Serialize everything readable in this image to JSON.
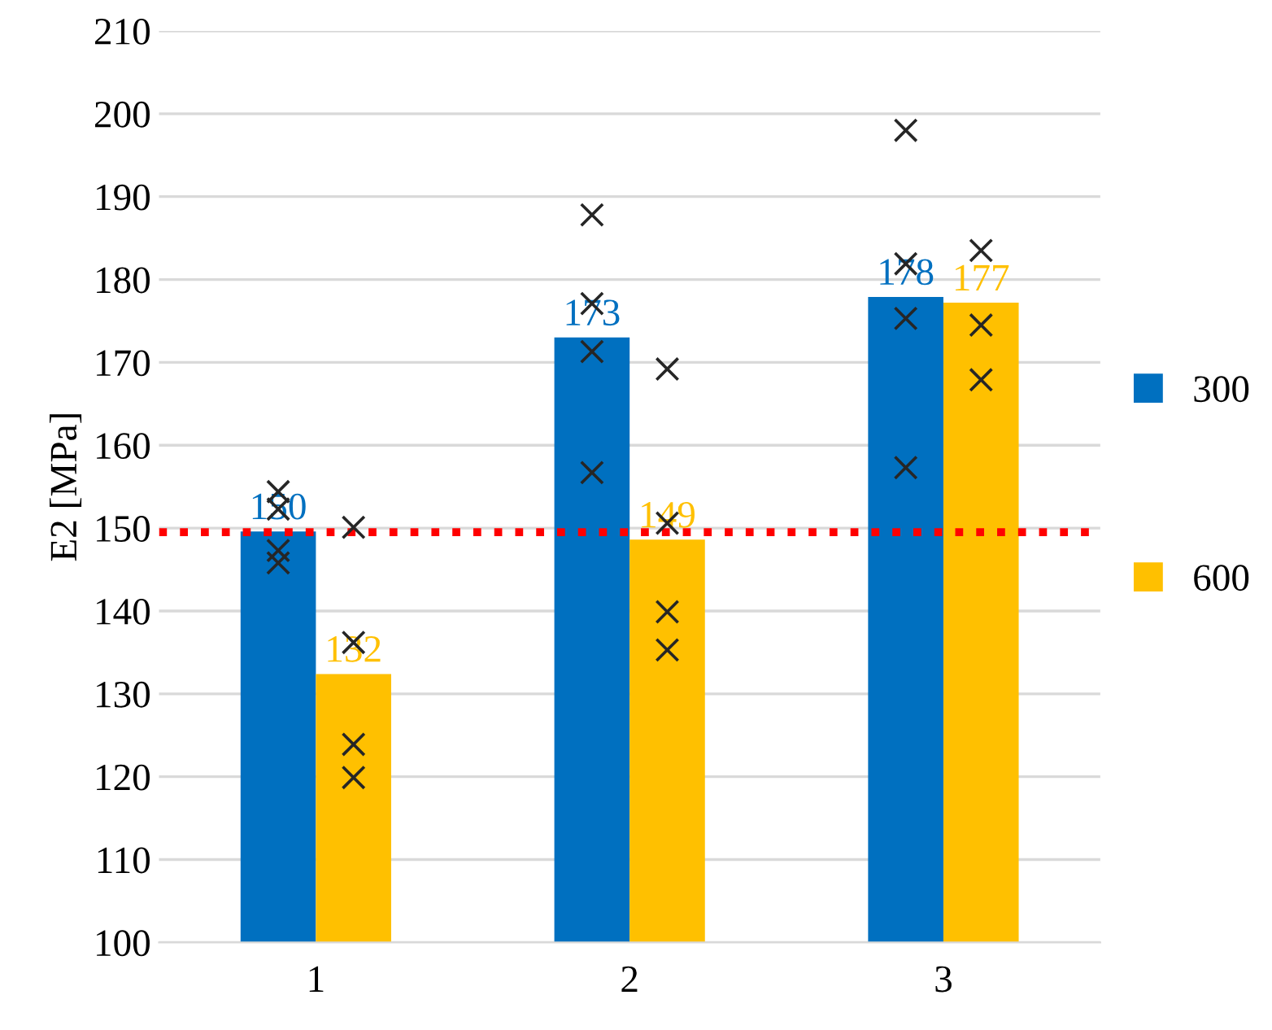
{
  "chart_data": {
    "type": "bar",
    "ylabel": "E2 [MPa]",
    "categories": [
      "1",
      "2",
      "3"
    ],
    "series": [
      {
        "name": "300",
        "color": "#0070c0",
        "values": [
          149.6,
          173,
          177.9
        ],
        "value_labels": [
          "150",
          "173",
          "178"
        ]
      },
      {
        "name": "600",
        "color": "#ffc000",
        "values": [
          132.4,
          148.6,
          177.2
        ],
        "value_labels": [
          "132",
          "149",
          "177"
        ]
      },
      {
        "type": "scatter",
        "color": "#262626",
        "marker": "cross",
        "x": [
          "1",
          "1",
          "1",
          "1",
          "2",
          "2",
          "2",
          "2",
          "3",
          "3",
          "3",
          "3"
        ],
        "values": [
          154.4,
          152.3,
          147.3,
          145.8,
          187.8,
          177.1,
          171.3,
          156.7,
          198.0,
          181.9,
          175.3,
          157.3
        ]
      },
      {
        "type": "scatter",
        "color": "#262626",
        "marker": "cross",
        "x": [
          "1",
          "1",
          "1",
          "1",
          "2",
          "2",
          "2",
          "2",
          "3",
          "3",
          "3"
        ],
        "values": [
          150.1,
          136.2,
          123.9,
          119.9,
          169.2,
          150.6,
          139.9,
          135.3,
          183.5,
          174.5,
          167.9
        ]
      }
    ],
    "ylim": [
      100,
      210
    ],
    "yticks": [
      100,
      110,
      120,
      130,
      140,
      150,
      160,
      170,
      180,
      190,
      200,
      210
    ],
    "ref_lines": [
      {
        "axis": "y",
        "value": 149.5,
        "color": "#ff0000",
        "line_style": "dotted"
      }
    ],
    "grid": "y",
    "legend": "right"
  }
}
